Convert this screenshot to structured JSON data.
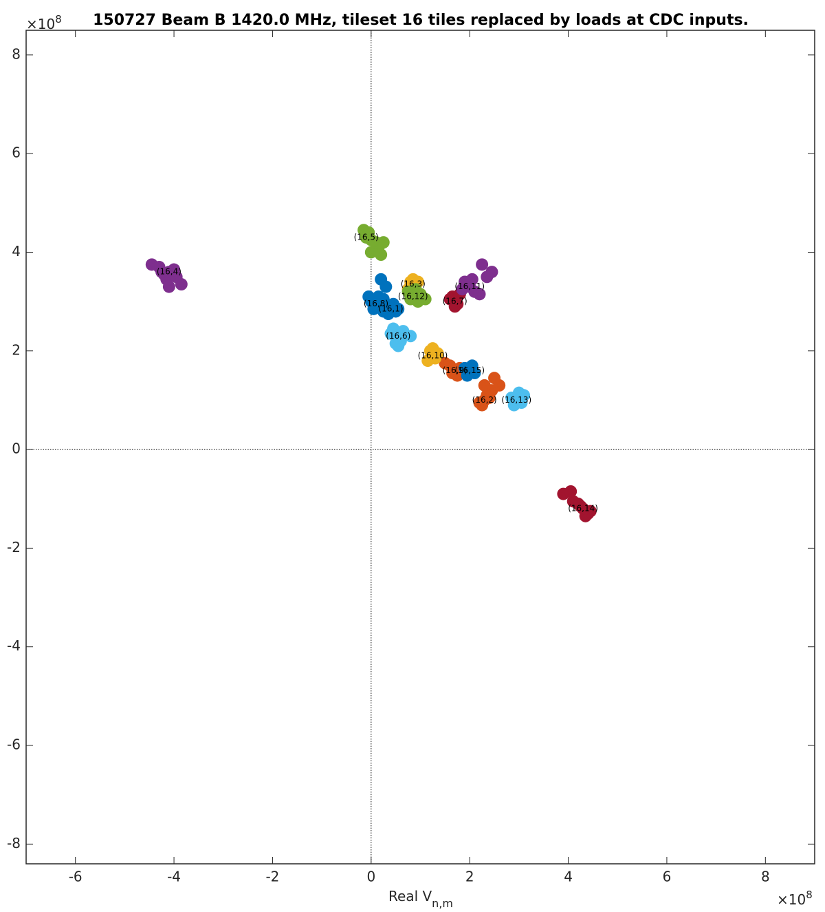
{
  "chart_data": {
    "type": "scatter",
    "title": "150727 Beam B 1420.0 MHz, tileset 16 tiles replaced by loads at CDC inputs.",
    "x_label": {
      "text": "Real V",
      "subscript": "n,m"
    },
    "x_multiplier": {
      "base": "×10",
      "exponent": "8"
    },
    "y_multiplier": {
      "base": "×10",
      "exponent": "8"
    },
    "xlim": [
      -7,
      9
    ],
    "ylim": [
      -8.4,
      8.5
    ],
    "xticks": [
      -6,
      -4,
      -2,
      0,
      2,
      4,
      6,
      8
    ],
    "yticks": [
      -8,
      -6,
      -4,
      -2,
      0,
      2,
      4,
      6,
      8
    ],
    "zero_lines": true,
    "series": [
      {
        "name": "(16,1)",
        "color": "#0072BD",
        "x": [
          0.4,
          0.3,
          0.5,
          0.45,
          0.35,
          0.55,
          0.25
        ],
        "y": [
          2.85,
          2.9,
          2.8,
          2.95,
          2.75,
          2.85,
          2.8
        ]
      },
      {
        "name": "(16,2)",
        "color": "#D95319",
        "x": [
          2.3,
          2.2,
          2.4,
          2.25,
          2.35,
          2.5,
          2.6,
          2.45,
          2.3
        ],
        "y": [
          1.0,
          0.95,
          1.05,
          0.9,
          1.1,
          1.45,
          1.3,
          1.2,
          1.3
        ]
      },
      {
        "name": "(16,3)",
        "color": "#EDB120",
        "x": [
          0.85,
          0.8,
          0.9,
          0.75,
          0.95,
          0.85
        ],
        "y": [
          3.35,
          3.4,
          3.3,
          3.25,
          3.4,
          3.45
        ]
      },
      {
        "name": "(16,4)",
        "color": "#7E2F8E",
        "x": [
          -4.1,
          -4.3,
          -4.2,
          -4.0,
          -4.15,
          -4.45,
          -3.95,
          -4.1,
          -3.85,
          -4.25
        ],
        "y": [
          3.6,
          3.7,
          3.55,
          3.65,
          3.45,
          3.75,
          3.5,
          3.3,
          3.35,
          3.6
        ]
      },
      {
        "name": "(16,5)",
        "color": "#77AC30",
        "x": [
          -0.1,
          -0.15,
          -0.05,
          0.0,
          0.1,
          0.15,
          0.25,
          0.2,
          0.0,
          -0.1
        ],
        "y": [
          4.3,
          4.45,
          4.4,
          4.25,
          4.2,
          4.1,
          4.2,
          3.95,
          4.0,
          4.35
        ]
      },
      {
        "name": "(16,6)",
        "color": "#4DBEEE",
        "x": [
          0.55,
          0.4,
          0.5,
          0.65,
          0.6,
          0.45,
          0.8,
          0.55
        ],
        "y": [
          2.3,
          2.35,
          2.15,
          2.4,
          2.2,
          2.45,
          2.3,
          2.1
        ]
      },
      {
        "name": "(16,7)",
        "color": "#A2142F",
        "x": [
          1.7,
          1.65,
          1.75,
          1.6,
          1.8,
          1.7
        ],
        "y": [
          3.0,
          3.1,
          2.95,
          3.05,
          3.15,
          2.9
        ]
      },
      {
        "name": "(16,8)",
        "color": "#0072BD",
        "x": [
          0.1,
          0.0,
          0.2,
          0.15,
          0.05,
          0.25,
          0.2,
          0.3,
          -0.05
        ],
        "y": [
          2.95,
          3.0,
          2.9,
          3.1,
          2.85,
          3.05,
          3.45,
          3.3,
          3.1
        ]
      },
      {
        "name": "(16,9)",
        "color": "#D95319",
        "x": [
          1.7,
          1.6,
          1.75,
          1.5,
          1.8,
          1.65
        ],
        "y": [
          1.6,
          1.7,
          1.5,
          1.75,
          1.65,
          1.55
        ]
      },
      {
        "name": "(16,10)",
        "color": "#EDB120",
        "x": [
          1.25,
          1.2,
          1.35,
          1.15,
          1.3,
          1.25
        ],
        "y": [
          1.9,
          2.0,
          1.95,
          1.8,
          1.85,
          2.05
        ]
      },
      {
        "name": "(16,11)",
        "color": "#7E2F8E",
        "x": [
          2.0,
          1.9,
          2.1,
          2.2,
          1.85,
          2.05,
          2.25,
          2.45,
          2.35
        ],
        "y": [
          3.3,
          3.4,
          3.2,
          3.15,
          3.25,
          3.45,
          3.75,
          3.6,
          3.5
        ]
      },
      {
        "name": "(16,12)",
        "color": "#77AC30",
        "x": [
          0.85,
          0.75,
          0.95,
          1.0,
          0.8,
          0.9,
          1.1
        ],
        "y": [
          3.1,
          3.2,
          3.0,
          3.15,
          3.05,
          3.25,
          3.05
        ]
      },
      {
        "name": "(16,13)",
        "color": "#4DBEEE",
        "x": [
          2.95,
          2.85,
          3.05,
          3.1,
          2.9,
          3.0
        ],
        "y": [
          1.0,
          1.05,
          0.95,
          1.1,
          0.9,
          1.15
        ]
      },
      {
        "name": "(16,14)",
        "color": "#A2142F",
        "x": [
          4.3,
          4.2,
          4.4,
          4.1,
          4.35,
          4.45,
          3.9,
          4.05,
          4.25
        ],
        "y": [
          -1.2,
          -1.1,
          -1.3,
          -1.05,
          -1.35,
          -1.25,
          -0.9,
          -0.85,
          -1.15
        ]
      },
      {
        "name": "(16,15)",
        "color": "#0072BD",
        "x": [
          2.0,
          1.9,
          2.1,
          1.95,
          2.05
        ],
        "y": [
          1.6,
          1.65,
          1.55,
          1.5,
          1.7
        ]
      }
    ]
  }
}
